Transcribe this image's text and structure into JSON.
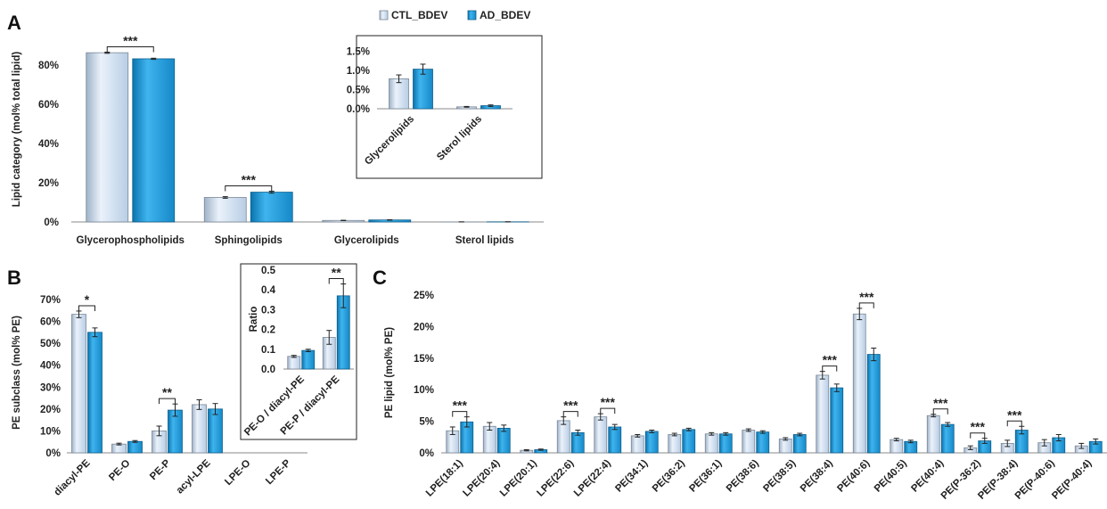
{
  "colors": {
    "ctl": "#c9dcf0",
    "ad": "#1a98d8",
    "ctl_edge": "#7a8796",
    "ad_edge": "#0f5f8c"
  },
  "legend": [
    "CTL_BDEV",
    "AD_BDEV"
  ],
  "panel_labels": [
    "A",
    "B",
    "C"
  ],
  "chart_data": [
    {
      "id": "A",
      "type": "bar",
      "ylabel": "Lipid category (mol% total lipid)",
      "categories": [
        "Glycerophospholipids",
        "Sphingolipids",
        "Glycerolipids",
        "Sterol lipids"
      ],
      "series": [
        {
          "name": "CTL_BDEV",
          "values": [
            86.3,
            12.5,
            0.78,
            0.05
          ],
          "errors": [
            0.3,
            0.4,
            0.08,
            0.01
          ]
        },
        {
          "name": "AD_BDEV",
          "values": [
            83.2,
            15.2,
            1.03,
            0.08
          ],
          "errors": [
            0.3,
            0.5,
            0.1,
            0.02
          ]
        }
      ],
      "yticks": [
        "0%",
        "20%",
        "40%",
        "60%",
        "80%"
      ],
      "ylim": [
        0,
        95
      ],
      "significance": [
        {
          "category": "Glycerophospholipids",
          "label": "***"
        },
        {
          "category": "Sphingolipids",
          "label": "***"
        }
      ]
    },
    {
      "id": "A-inset",
      "type": "bar",
      "categories": [
        "Glycerolipids",
        "Sterol lipids"
      ],
      "series": [
        {
          "name": "CTL_BDEV",
          "values": [
            0.78,
            0.05
          ],
          "errors": [
            0.1,
            0.01
          ]
        },
        {
          "name": "AD_BDEV",
          "values": [
            1.03,
            0.08
          ],
          "errors": [
            0.13,
            0.02
          ]
        }
      ],
      "yticks": [
        "0.0%",
        "0.5%",
        "1.0%",
        "1.5%"
      ],
      "ylim": [
        0,
        1.6
      ]
    },
    {
      "id": "B",
      "type": "bar",
      "ylabel": "PE subclass (mol% PE)",
      "categories": [
        "diacyl-PE",
        "PE-O",
        "PE-P",
        "acyl-LPE",
        "LPE-O",
        "LPE-P"
      ],
      "series": [
        {
          "name": "CTL_BDEV",
          "values": [
            63.2,
            4.0,
            10.0,
            22.0,
            0,
            0
          ],
          "errors": [
            1.5,
            0.4,
            2.2,
            2.2,
            0,
            0
          ]
        },
        {
          "name": "AD_BDEV",
          "values": [
            55.0,
            5.2,
            19.5,
            20.0,
            0,
            0
          ],
          "errors": [
            2.0,
            0.4,
            2.8,
            2.5,
            0,
            0
          ]
        }
      ],
      "yticks": [
        "0%",
        "10%",
        "20%",
        "30%",
        "40%",
        "50%",
        "60%",
        "70%"
      ],
      "ylim": [
        0,
        72
      ],
      "significance": [
        {
          "category": "diacyl-PE",
          "label": "*"
        },
        {
          "category": "PE-P",
          "label": "**"
        }
      ]
    },
    {
      "id": "B-inset",
      "type": "bar",
      "ylabel": "Ratio",
      "categories": [
        "PE-O / diacyl-PE",
        "PE-P / diacyl-PE"
      ],
      "series": [
        {
          "name": "CTL_BDEV",
          "values": [
            0.064,
            0.16
          ],
          "errors": [
            0.005,
            0.035
          ]
        },
        {
          "name": "AD_BDEV",
          "values": [
            0.094,
            0.37
          ],
          "errors": [
            0.006,
            0.06
          ]
        }
      ],
      "yticks": [
        "0.0",
        "0.1",
        "0.2",
        "0.3",
        "0.4",
        "0.5"
      ],
      "ylim": [
        0,
        0.5
      ],
      "significance": [
        {
          "category": "PE-P / diacyl-PE",
          "label": "**"
        }
      ]
    },
    {
      "id": "C",
      "type": "bar",
      "ylabel": "PE lipid (mol% PE)",
      "categories": [
        "LPE(18:1)",
        "LPE(20:4)",
        "LPE(20:1)",
        "LPE(22:6)",
        "LPE(22:4)",
        "PE(34:1)",
        "PE(36:2)",
        "PE(36:1)",
        "PE(38:6)",
        "PE(38:5)",
        "PE(38:4)",
        "PE(40:6)",
        "PE(40:5)",
        "PE(40:4)",
        "PE(P-36:2)",
        "PE(P-38:4)",
        "PE(P-40:6)",
        "PE(P-40:4)"
      ],
      "series": [
        {
          "name": "CTL_BDEV",
          "values": [
            3.5,
            4.2,
            0.4,
            5.1,
            5.7,
            2.7,
            2.9,
            3.0,
            3.6,
            2.2,
            12.3,
            22.0,
            2.1,
            5.9,
            0.8,
            1.5,
            1.6,
            1.1
          ],
          "errors": [
            0.6,
            0.6,
            0.1,
            0.6,
            0.5,
            0.2,
            0.2,
            0.2,
            0.2,
            0.2,
            0.6,
            0.9,
            0.2,
            0.2,
            0.3,
            0.5,
            0.5,
            0.4
          ]
        },
        {
          "name": "AD_BDEV",
          "values": [
            4.9,
            3.9,
            0.5,
            3.2,
            4.1,
            3.4,
            3.7,
            3.0,
            3.3,
            2.9,
            10.3,
            15.6,
            1.8,
            4.5,
            1.9,
            3.6,
            2.4,
            1.8
          ],
          "errors": [
            0.8,
            0.5,
            0.1,
            0.4,
            0.4,
            0.2,
            0.2,
            0.2,
            0.2,
            0.2,
            0.6,
            1.0,
            0.2,
            0.3,
            0.4,
            0.6,
            0.5,
            0.4
          ]
        }
      ],
      "yticks": [
        "0%",
        "5%",
        "10%",
        "15%",
        "20%",
        "25%"
      ],
      "ylim": [
        0,
        25
      ],
      "significance": [
        {
          "category": "LPE(18:1)",
          "label": "***"
        },
        {
          "category": "LPE(22:6)",
          "label": "***"
        },
        {
          "category": "LPE(22:4)",
          "label": "***"
        },
        {
          "category": "PE(38:4)",
          "label": "***"
        },
        {
          "category": "PE(40:6)",
          "label": "***"
        },
        {
          "category": "PE(40:4)",
          "label": "***"
        },
        {
          "category": "PE(P-36:2)",
          "label": "***"
        },
        {
          "category": "PE(P-38:4)",
          "label": "***"
        }
      ]
    }
  ]
}
